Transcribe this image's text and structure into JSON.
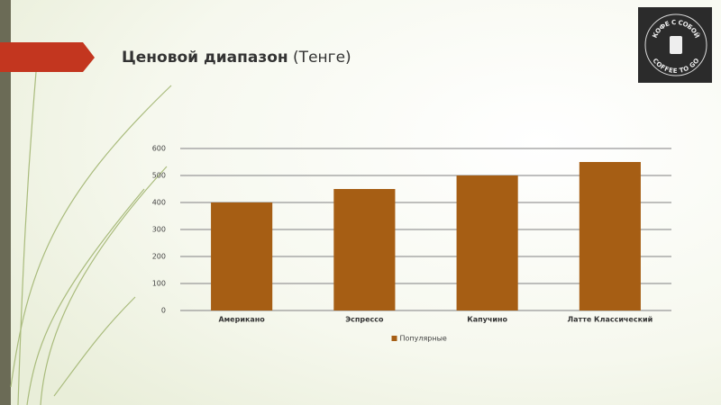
{
  "slide": {
    "title": "Ценовой диапазон",
    "subtitle": "(Тенге)",
    "logo": {
      "top": "КОФЕ С СОБОЙ",
      "bottom": "COFFEE TO GO"
    }
  },
  "chart_data": {
    "type": "bar",
    "categories": [
      "Американо",
      "Эспрессо",
      "Капучино",
      "Латте Классический"
    ],
    "series": [
      {
        "name": "Популярные",
        "color": "#a65e14",
        "values": [
          400,
          450,
          500,
          550
        ]
      }
    ],
    "ylim": [
      0,
      600
    ],
    "yticks": [
      0,
      100,
      200,
      300,
      400,
      500,
      600
    ],
    "grid": true,
    "legend": "bottom"
  }
}
